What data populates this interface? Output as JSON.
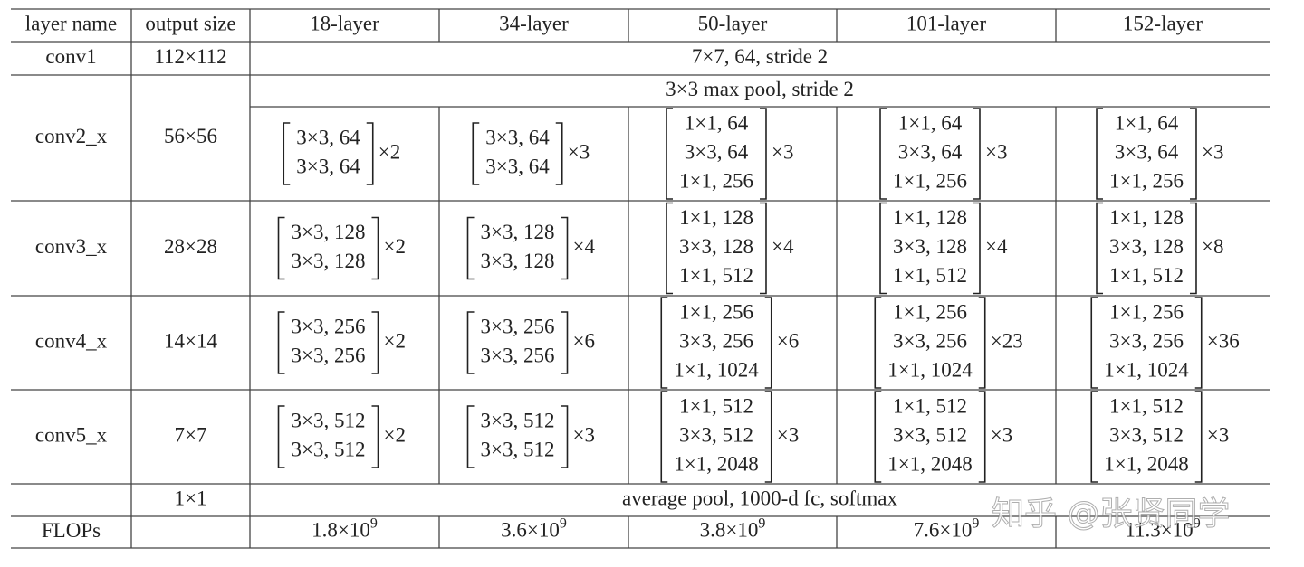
{
  "header": [
    "layer name",
    "output size",
    "18-layer",
    "34-layer",
    "50-layer",
    "101-layer",
    "152-layer"
  ],
  "rows": [
    {
      "name": "conv1",
      "output": "112×112",
      "span": "7×7, 64, stride 2"
    },
    {
      "name": "conv2_x",
      "output": "56×56",
      "span": "3×3 max pool, stride 2",
      "blocks": [
        {
          "lines": [
            "3×3, 64",
            "3×3, 64"
          ],
          "mult": "×2"
        },
        {
          "lines": [
            "3×3, 64",
            "3×3, 64"
          ],
          "mult": "×3"
        },
        {
          "lines": [
            "1×1, 64",
            "3×3, 64",
            "1×1, 256"
          ],
          "mult": "×3"
        },
        {
          "lines": [
            "1×1, 64",
            "3×3, 64",
            "1×1, 256"
          ],
          "mult": "×3"
        },
        {
          "lines": [
            "1×1, 64",
            "3×3, 64",
            "1×1, 256"
          ],
          "mult": "×3"
        }
      ]
    },
    {
      "name": "conv3_x",
      "output": "28×28",
      "blocks": [
        {
          "lines": [
            "3×3, 128",
            "3×3, 128"
          ],
          "mult": "×2"
        },
        {
          "lines": [
            "3×3, 128",
            "3×3, 128"
          ],
          "mult": "×4"
        },
        {
          "lines": [
            "1×1, 128",
            "3×3, 128",
            "1×1, 512"
          ],
          "mult": "×4"
        },
        {
          "lines": [
            "1×1, 128",
            "3×3, 128",
            "1×1, 512"
          ],
          "mult": "×4"
        },
        {
          "lines": [
            "1×1, 128",
            "3×3, 128",
            "1×1, 512"
          ],
          "mult": "×8"
        }
      ]
    },
    {
      "name": "conv4_x",
      "output": "14×14",
      "blocks": [
        {
          "lines": [
            "3×3, 256",
            "3×3, 256"
          ],
          "mult": "×2"
        },
        {
          "lines": [
            "3×3, 256",
            "3×3, 256"
          ],
          "mult": "×6"
        },
        {
          "lines": [
            "1×1, 256",
            "3×3, 256",
            "1×1, 1024"
          ],
          "mult": "×6"
        },
        {
          "lines": [
            "1×1, 256",
            "3×3, 256",
            "1×1, 1024"
          ],
          "mult": "×23"
        },
        {
          "lines": [
            "1×1, 256",
            "3×3, 256",
            "1×1, 1024"
          ],
          "mult": "×36"
        }
      ]
    },
    {
      "name": "conv5_x",
      "output": "7×7",
      "blocks": [
        {
          "lines": [
            "3×3, 512",
            "3×3, 512"
          ],
          "mult": "×2"
        },
        {
          "lines": [
            "3×3, 512",
            "3×3, 512"
          ],
          "mult": "×3"
        },
        {
          "lines": [
            "1×1, 512",
            "3×3, 512",
            "1×1, 2048"
          ],
          "mult": "×3"
        },
        {
          "lines": [
            "1×1, 512",
            "3×3, 512",
            "1×1, 2048"
          ],
          "mult": "×3"
        },
        {
          "lines": [
            "1×1, 512",
            "3×3, 512",
            "1×1, 2048"
          ],
          "mult": "×3"
        }
      ]
    },
    {
      "output": "1×1",
      "span": "average pool, 1000-d fc, softmax"
    },
    {
      "name": "FLOPs",
      "flops": [
        {
          "base": "1.8×10",
          "exp": "9"
        },
        {
          "base": "3.6×10",
          "exp": "9"
        },
        {
          "base": "3.8×10",
          "exp": "9"
        },
        {
          "base": "7.6×10",
          "exp": "9"
        },
        {
          "base": "11.3×10",
          "exp": "9"
        }
      ]
    }
  ],
  "watermark": "知乎 @张贤同学"
}
